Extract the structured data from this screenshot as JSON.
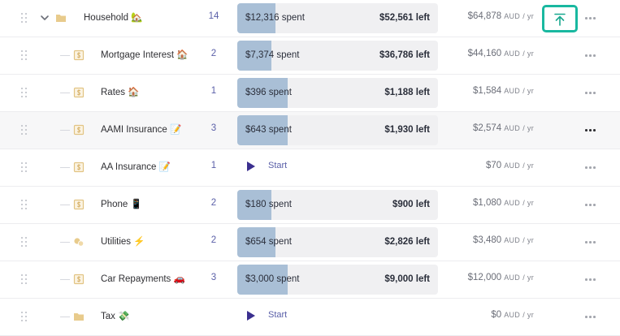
{
  "unit_label": "AUD",
  "per_label": "/ yr",
  "colors": {
    "fill": "#a9bfd6",
    "track": "#f0f0f2",
    "accent": "#19b8a0",
    "count": "#5a5fa8",
    "play": "#3b2f8f"
  },
  "parent": {
    "name": "Household 🏡",
    "count": "14",
    "spent": "$12,316 spent",
    "left": "$52,561 left",
    "yearly": "$64,878",
    "progress": 0.19
  },
  "rows": [
    {
      "name": "Mortgage Interest 🏠",
      "count": "2",
      "spent": "$7,374 spent",
      "left": "$36,786 left",
      "yearly": "$44,160",
      "progress": 0.17,
      "icon": "dollar-icon"
    },
    {
      "name": "Rates 🏠",
      "count": "1",
      "spent": "$396 spent",
      "left": "$1,188 left",
      "yearly": "$1,584",
      "progress": 0.25,
      "icon": "dollar-icon"
    },
    {
      "name": "AAMI Insurance 📝",
      "count": "3",
      "spent": "$643 spent",
      "left": "$1,930 left",
      "yearly": "$2,574",
      "progress": 0.25,
      "icon": "dollar-icon"
    },
    {
      "name": "AA Insurance 📝",
      "count": "1",
      "start": "Start",
      "yearly": "$70",
      "icon": "dollar-icon"
    },
    {
      "name": "Phone 📱",
      "count": "2",
      "spent": "$180 spent",
      "left": "$900 left",
      "yearly": "$1,080",
      "progress": 0.17,
      "icon": "dollar-icon"
    },
    {
      "name": "Utilities ⚡",
      "count": "2",
      "spent": "$654 spent",
      "left": "$2,826 left",
      "yearly": "$3,480",
      "progress": 0.19,
      "icon": "coins-icon"
    },
    {
      "name": "Car Repayments 🚗",
      "count": "3",
      "spent": "$3,000 spent",
      "left": "$9,000 left",
      "yearly": "$12,000",
      "progress": 0.25,
      "icon": "dollar-icon"
    },
    {
      "name": "Tax 💸",
      "start": "Start",
      "yearly": "$0",
      "icon": "folder-icon"
    }
  ]
}
